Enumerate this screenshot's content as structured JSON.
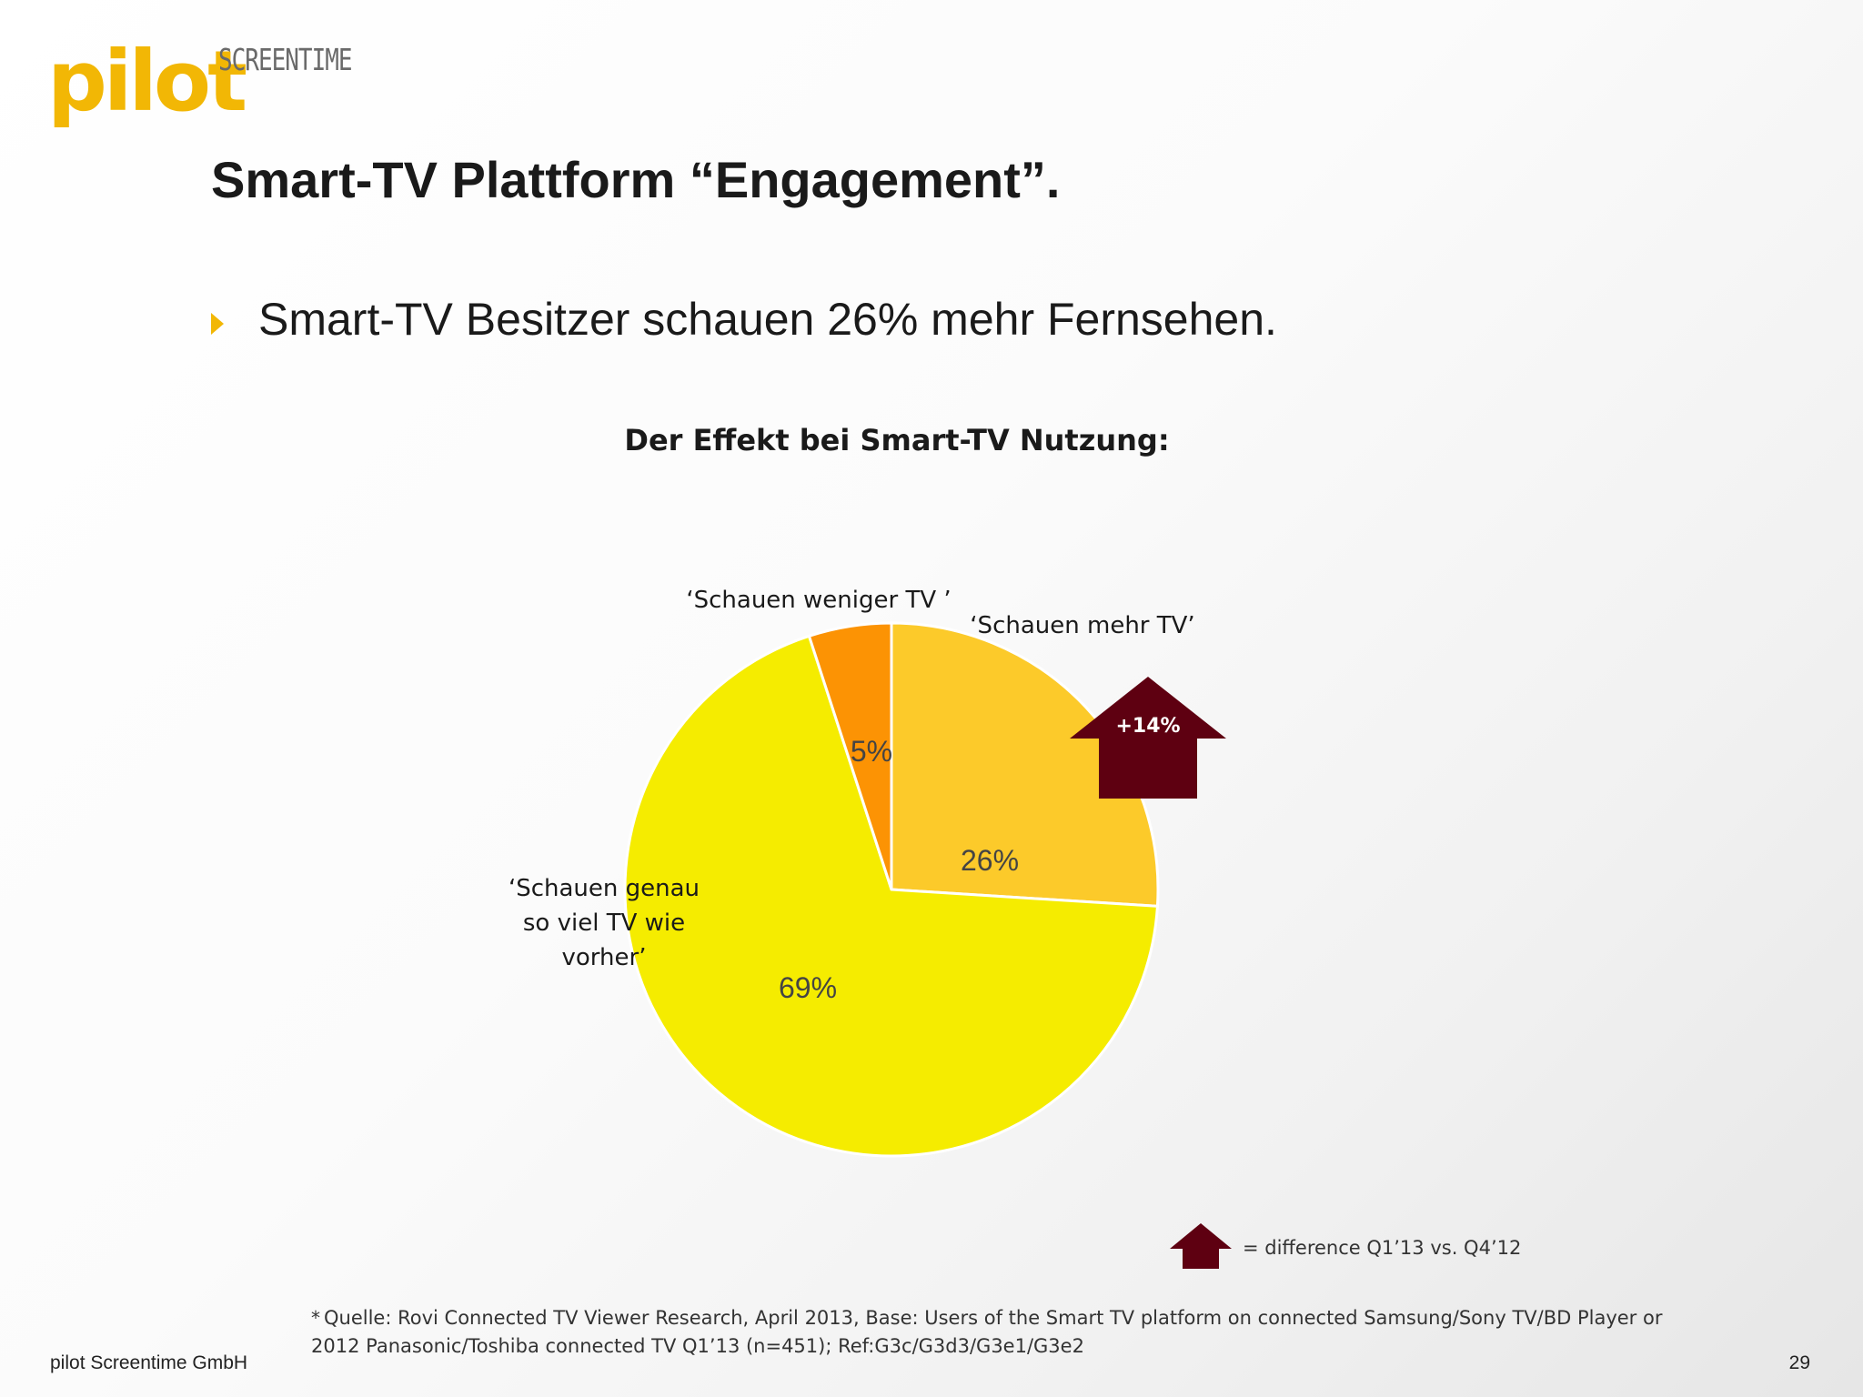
{
  "logo": {
    "word": "pilot",
    "sub": "SCREENTIME"
  },
  "title": "Smart-TV Plattform “Engagement”.",
  "bullet": "Smart-TV Besitzer schauen 26% mehr Fernsehen.",
  "chart_data": {
    "type": "pie",
    "title": "Der Effekt bei Smart-TV Nutzung:",
    "slices": [
      {
        "label": "‘Schauen mehr TV’",
        "value": 26,
        "value_label": "26%",
        "color": "#fcca2a"
      },
      {
        "label": "‘Schauen genau so viel TV wie vorher’",
        "label_lines": [
          "‘Schauen genau",
          "so viel TV wie",
          "vorher’"
        ],
        "value": 69,
        "value_label": "69%",
        "color": "#f5ec00"
      },
      {
        "label": "‘Schauen weniger TV ’",
        "value": 5,
        "value_label": "5%",
        "color": "#fc9304"
      }
    ],
    "annotation": {
      "text": "+14%",
      "color": "#5e0011"
    }
  },
  "legend": {
    "text": "= difference Q1’13 vs. Q4’12"
  },
  "footnote": {
    "star": "*",
    "lines": [
      "Quelle: Rovi Connected TV Viewer Research, April 2013, Base: Users of the Smart TV platform on connected Samsung/Sony TV/BD Player or",
      "2012 Panasonic/Toshiba connected TV Q1’13 (n=451); Ref:G3c/G3d3/G3e1/G3e2"
    ]
  },
  "company": "pilot Screentime GmbH",
  "page_number": "29"
}
